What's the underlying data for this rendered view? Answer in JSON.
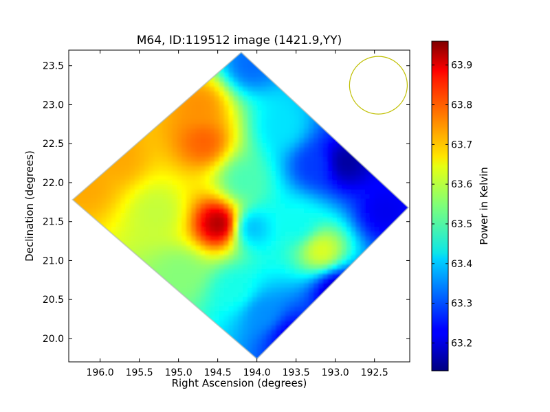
{
  "chart_data": {
    "type": "heatmap",
    "title": "M64, ID:119512 image (1421.9,YY)",
    "xlabel": "Right Ascension (degrees)",
    "ylabel": "Declination (degrees)",
    "xlim": [
      196.4,
      192.05
    ],
    "ylim": [
      19.7,
      23.7
    ],
    "x_inverted": true,
    "x_ticks": [
      "196.0",
      "195.5",
      "195.0",
      "194.5",
      "194.0",
      "193.5",
      "193.0",
      "192.5"
    ],
    "x_tick_values": [
      196.0,
      195.5,
      195.0,
      194.5,
      194.0,
      193.5,
      193.0,
      192.5
    ],
    "y_ticks": [
      "20.0",
      "20.5",
      "21.0",
      "21.5",
      "22.0",
      "22.5",
      "23.0",
      "23.5"
    ],
    "y_tick_values": [
      20.0,
      20.5,
      21.0,
      21.5,
      22.0,
      22.5,
      23.0,
      23.5
    ],
    "colorbar": {
      "label": "Power in Kelvin",
      "range": [
        63.13,
        63.96
      ],
      "ticks": [
        "63.2",
        "63.3",
        "63.4",
        "63.5",
        "63.6",
        "63.7",
        "63.8",
        "63.9"
      ],
      "tick_values": [
        63.2,
        63.3,
        63.4,
        63.5,
        63.6,
        63.7,
        63.8,
        63.9
      ],
      "colormap": "jet"
    },
    "footprint_corners": [
      {
        "ra": 194.2,
        "dec": 23.67
      },
      {
        "ra": 192.07,
        "dec": 21.68
      },
      {
        "ra": 194.0,
        "dec": 19.74
      },
      {
        "ra": 196.35,
        "dec": 21.78
      }
    ],
    "beam_circle": {
      "ra": 192.45,
      "dec": 23.25,
      "radius_deg": 0.37,
      "color": "#bfbf00"
    },
    "hotspots": [
      {
        "ra": 194.5,
        "dec": 21.45,
        "value": 63.94
      },
      {
        "ra": 194.7,
        "dec": 22.5,
        "value": 63.78
      },
      {
        "ra": 194.75,
        "dec": 22.95,
        "value": 63.74
      },
      {
        "ra": 196.2,
        "dec": 21.95,
        "value": 63.72
      },
      {
        "ra": 195.8,
        "dec": 22.3,
        "value": 63.72
      },
      {
        "ra": 195.3,
        "dec": 21.6,
        "value": 63.6
      },
      {
        "ra": 193.2,
        "dec": 21.1,
        "value": 63.63
      },
      {
        "ra": 193.5,
        "dec": 21.45,
        "value": 63.45
      },
      {
        "ra": 194.1,
        "dec": 21.4,
        "value": 63.38
      },
      {
        "ra": 194.1,
        "dec": 23.5,
        "value": 63.32
      },
      {
        "ra": 193.7,
        "dec": 22.7,
        "value": 63.42
      },
      {
        "ra": 194.2,
        "dec": 22.0,
        "value": 63.5
      },
      {
        "ra": 193.95,
        "dec": 20.3,
        "value": 63.35
      },
      {
        "ra": 194.3,
        "dec": 20.6,
        "value": 63.46
      },
      {
        "ra": 195.0,
        "dec": 20.8,
        "value": 63.55
      },
      {
        "ra": 192.9,
        "dec": 22.25,
        "value": 63.15
      },
      {
        "ra": 192.4,
        "dec": 21.6,
        "value": 63.22
      },
      {
        "ra": 193.0,
        "dec": 20.6,
        "value": 63.18
      },
      {
        "ra": 193.6,
        "dec": 20.0,
        "value": 63.22
      },
      {
        "ra": 193.3,
        "dec": 22.2,
        "value": 63.28
      },
      {
        "ra": 192.7,
        "dec": 22.75,
        "value": 63.3
      }
    ]
  }
}
